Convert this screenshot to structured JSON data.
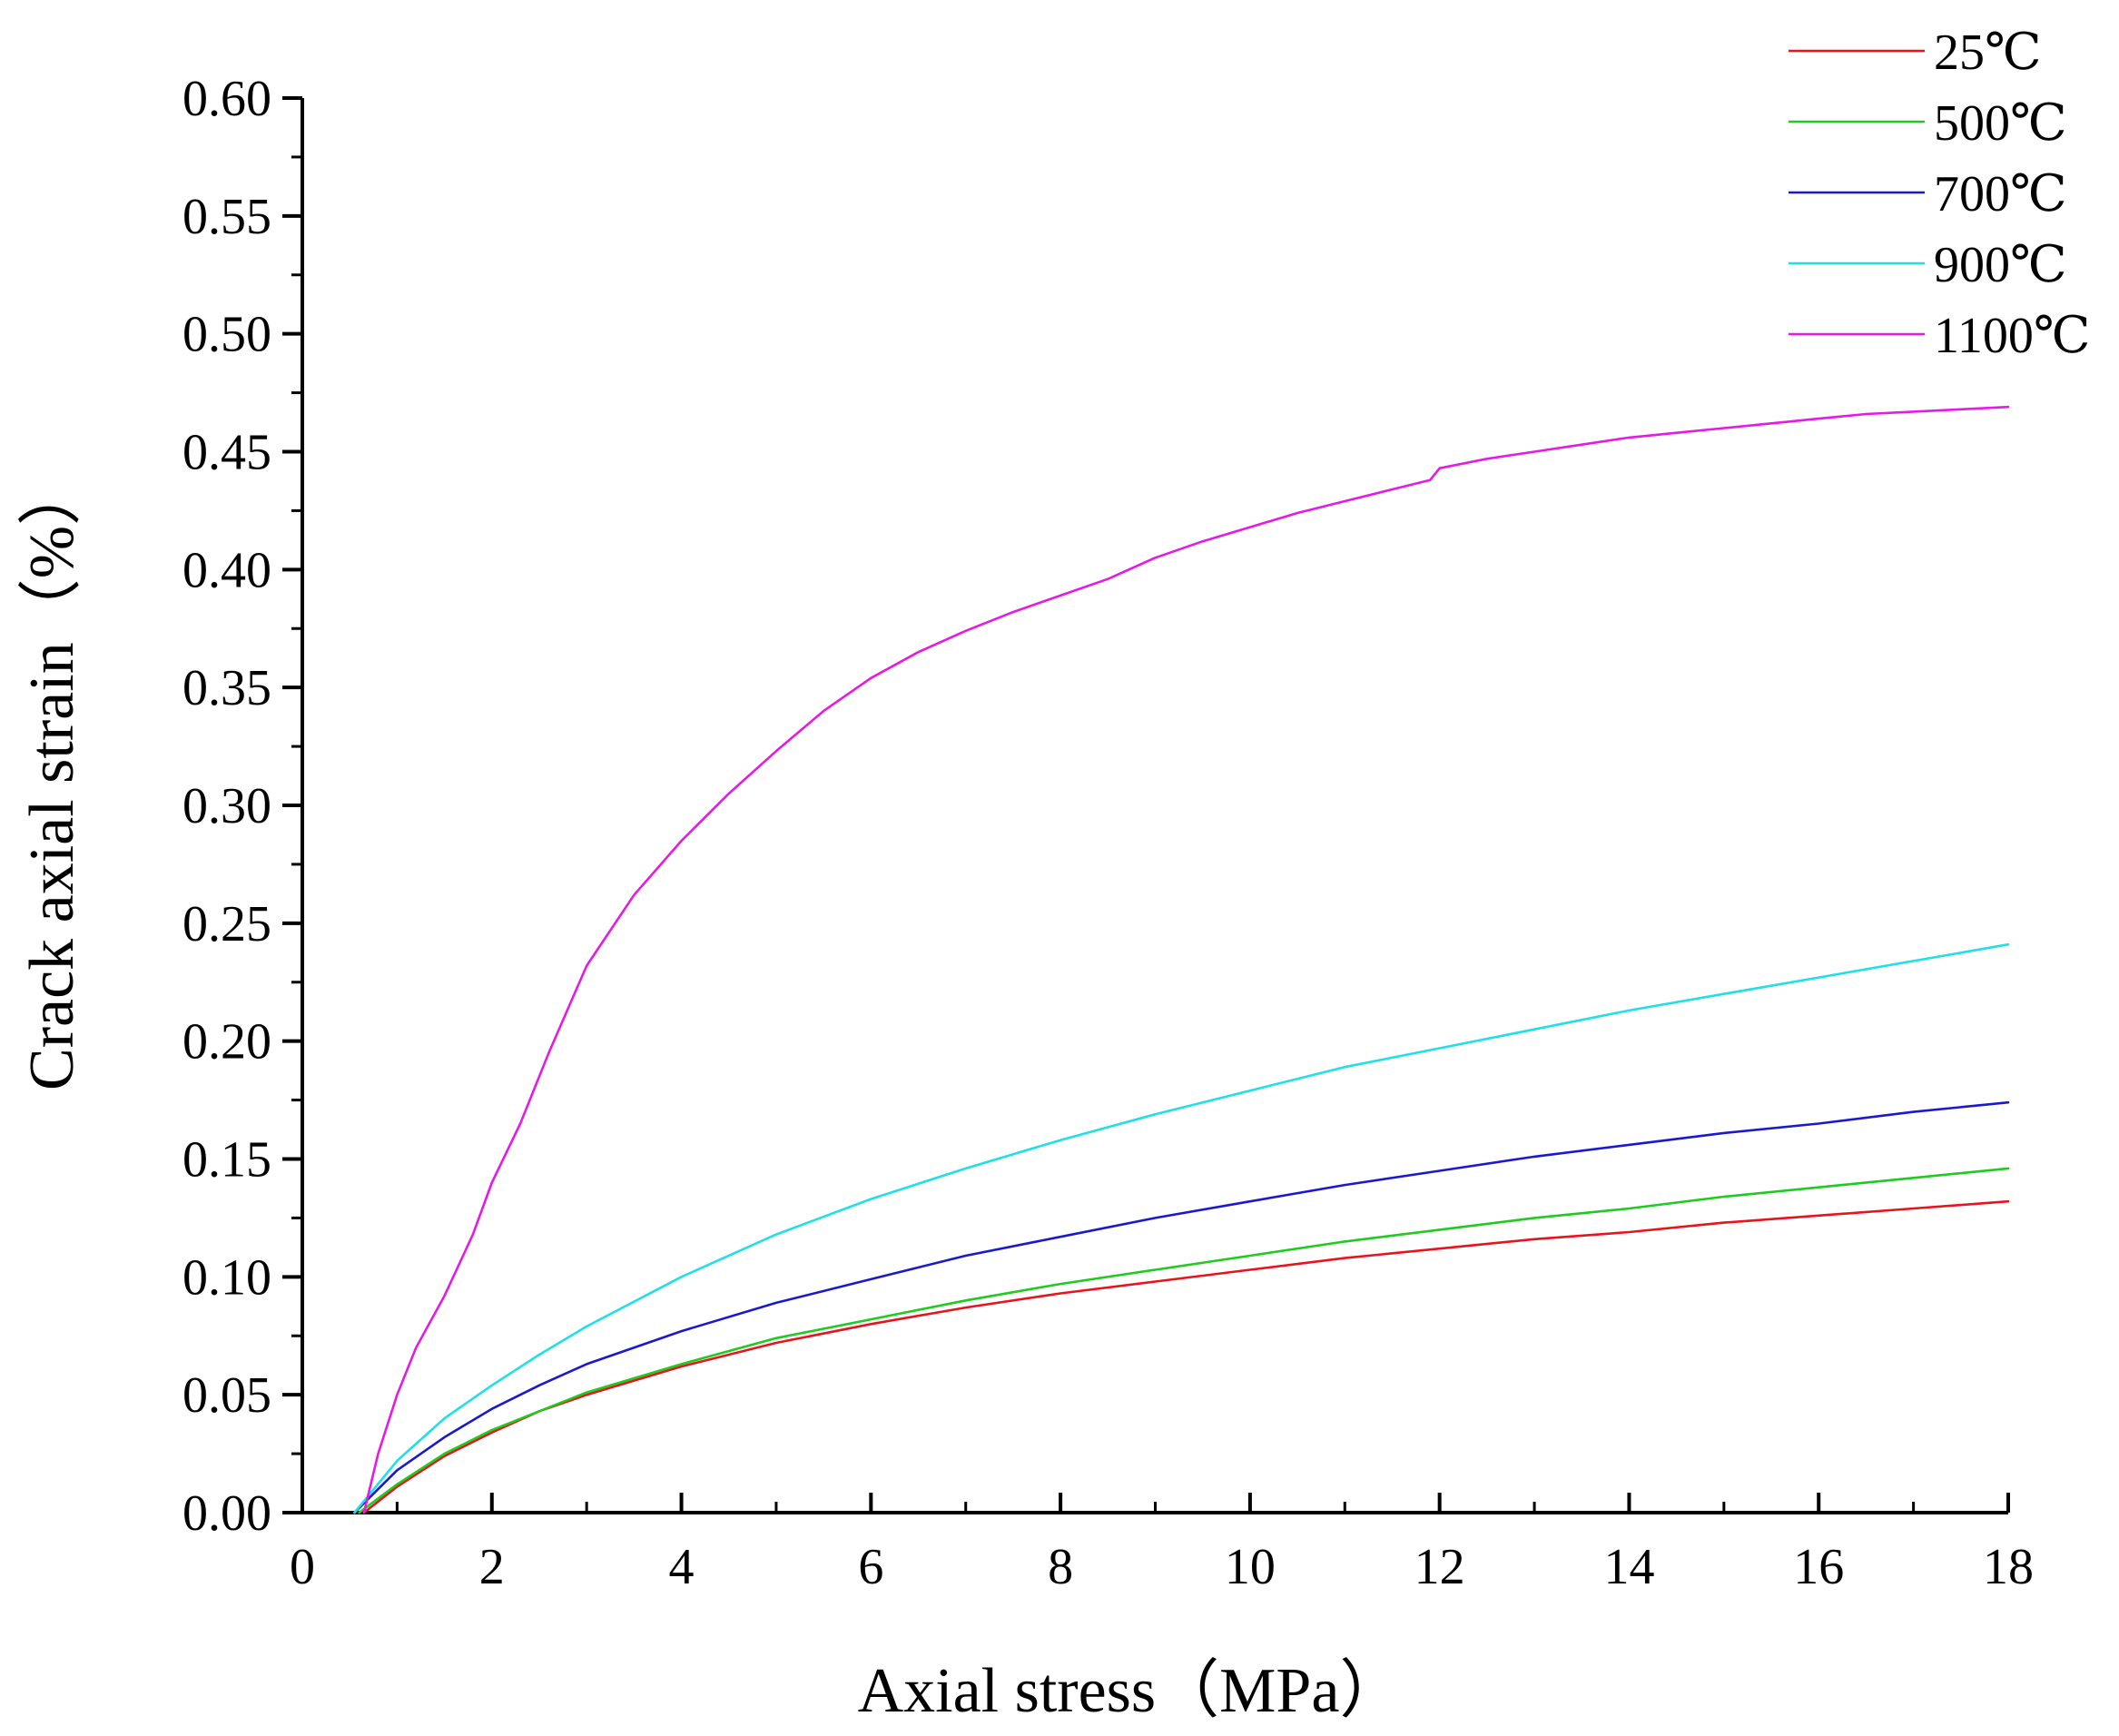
{
  "chart_data": {
    "type": "line",
    "title": "",
    "xlabel": "Axial stress（MPa）",
    "ylabel": "Crack axial strain（%）",
    "xlim": [
      0,
      18
    ],
    "ylim": [
      0,
      0.6
    ],
    "x_ticks": [
      "0",
      "2",
      "4",
      "6",
      "8",
      "10",
      "12",
      "14",
      "16",
      "18"
    ],
    "y_ticks": [
      "0.00",
      "0.05",
      "0.10",
      "0.15",
      "0.20",
      "0.25",
      "0.30",
      "0.35",
      "0.40",
      "0.45",
      "0.50",
      "0.55",
      "0.60"
    ],
    "grid": false,
    "legend_position": "top-right",
    "series": [
      {
        "name": "25℃",
        "color": "#e8141b",
        "x": [
          0.65,
          1,
          1.5,
          2,
          2.5,
          3,
          4,
          5,
          6,
          7,
          8,
          9,
          10,
          11,
          12,
          13,
          14,
          15,
          16,
          17,
          18
        ],
        "y": [
          0.0,
          0.011,
          0.024,
          0.034,
          0.043,
          0.05,
          0.062,
          0.072,
          0.08,
          0.087,
          0.093,
          0.098,
          0.103,
          0.108,
          0.112,
          0.116,
          0.119,
          0.123,
          0.126,
          0.129,
          0.132
        ]
      },
      {
        "name": "500℃",
        "color": "#1ecb1e",
        "x": [
          0.6,
          1,
          1.5,
          2,
          2.5,
          3,
          4,
          5,
          6,
          7,
          8,
          9,
          10,
          11,
          12,
          13,
          14,
          15,
          16,
          17,
          18
        ],
        "y": [
          0.0,
          0.012,
          0.025,
          0.035,
          0.043,
          0.051,
          0.063,
          0.074,
          0.082,
          0.09,
          0.097,
          0.103,
          0.109,
          0.115,
          0.12,
          0.125,
          0.129,
          0.134,
          0.138,
          0.142,
          0.146
        ]
      },
      {
        "name": "700℃",
        "color": "#1a1acc",
        "x": [
          0.55,
          1,
          1.5,
          2,
          2.5,
          3,
          4,
          5,
          6,
          7,
          8,
          9,
          10,
          11,
          12,
          13,
          14,
          15,
          16,
          17,
          18
        ],
        "y": [
          0.0,
          0.018,
          0.032,
          0.044,
          0.054,
          0.063,
          0.077,
          0.089,
          0.099,
          0.109,
          0.117,
          0.125,
          0.132,
          0.139,
          0.145,
          0.151,
          0.156,
          0.161,
          0.165,
          0.17,
          0.174
        ]
      },
      {
        "name": "900℃",
        "color": "#1fe0e6",
        "x": [
          0.55,
          1,
          1.5,
          2,
          2.5,
          3,
          4,
          5,
          6,
          7,
          8,
          9,
          10,
          11,
          12,
          13,
          14,
          15,
          16,
          17,
          18
        ],
        "y": [
          0.0,
          0.022,
          0.04,
          0.054,
          0.067,
          0.079,
          0.1,
          0.118,
          0.133,
          0.146,
          0.158,
          0.169,
          0.179,
          0.189,
          0.197,
          0.205,
          0.213,
          0.22,
          0.227,
          0.234,
          0.241
        ]
      },
      {
        "name": "1100℃",
        "color": "#e51ae5",
        "x": [
          0.65,
          0.8,
          1,
          1.2,
          1.5,
          1.8,
          2,
          2.3,
          2.6,
          3,
          3.5,
          4,
          4.5,
          5,
          5.5,
          6,
          6.5,
          7,
          7.5,
          8,
          8.5,
          9,
          9.5,
          10,
          10.5,
          11,
          11.5,
          11.9,
          12.0,
          12.5,
          13,
          13.5,
          14,
          14.5,
          15,
          15.5,
          16,
          16.5,
          17,
          17.5,
          18
        ],
        "y": [
          0.0,
          0.025,
          0.05,
          0.07,
          0.092,
          0.118,
          0.14,
          0.165,
          0.195,
          0.232,
          0.262,
          0.285,
          0.305,
          0.323,
          0.34,
          0.354,
          0.365,
          0.374,
          0.382,
          0.389,
          0.396,
          0.405,
          0.412,
          0.418,
          0.424,
          0.429,
          0.434,
          0.438,
          0.443,
          0.447,
          0.45,
          0.453,
          0.456,
          0.458,
          0.46,
          0.462,
          0.464,
          0.466,
          0.467,
          0.468,
          0.469
        ]
      }
    ]
  }
}
